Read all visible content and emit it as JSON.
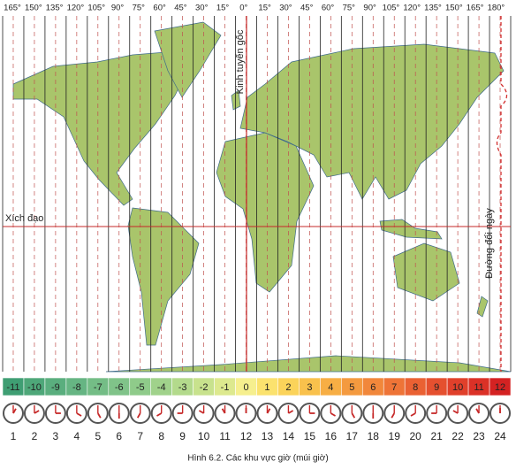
{
  "longitude_labels": [
    "165°",
    "150°",
    "135°",
    "120°",
    "105°",
    "90°",
    "75°",
    "60°",
    "45°",
    "30°",
    "15°",
    "0°",
    "15°",
    "30°",
    "45°",
    "60°",
    "75°",
    "90°",
    "105°",
    "120°",
    "135°",
    "150°",
    "165°",
    "180°"
  ],
  "labels": {
    "prime_meridian": "Kinh tuyến gốc",
    "equator": "Xích đạo",
    "date_line": "Đường đổi ngày"
  },
  "time_zones": [
    {
      "label": "-11",
      "color": "#3f9e73"
    },
    {
      "label": "-10",
      "color": "#4ea779"
    },
    {
      "label": "-9",
      "color": "#5aae7e"
    },
    {
      "label": "-8",
      "color": "#66b583"
    },
    {
      "label": "-7",
      "color": "#74bd86"
    },
    {
      "label": "-6",
      "color": "#80c389"
    },
    {
      "label": "-5",
      "color": "#8fcb8a"
    },
    {
      "label": "-4",
      "color": "#a0d28b"
    },
    {
      "label": "-3",
      "color": "#b3da8c"
    },
    {
      "label": "-2",
      "color": "#c8e28d"
    },
    {
      "label": "-1",
      "color": "#dde98e"
    },
    {
      "label": "0",
      "color": "#f6ef8e"
    },
    {
      "label": "1",
      "color": "#fbe26e"
    },
    {
      "label": "2",
      "color": "#fbd35a"
    },
    {
      "label": "3",
      "color": "#f9c14c"
    },
    {
      "label": "4",
      "color": "#f7ae44"
    },
    {
      "label": "5",
      "color": "#f49a3f"
    },
    {
      "label": "6",
      "color": "#f1873b"
    },
    {
      "label": "7",
      "color": "#ee7437"
    },
    {
      "label": "8",
      "color": "#ea6133"
    },
    {
      "label": "9",
      "color": "#e5502f"
    },
    {
      "label": "10",
      "color": "#e0402b"
    },
    {
      "label": "11",
      "color": "#db3127"
    },
    {
      "label": "12",
      "color": "#d42222"
    }
  ],
  "clock_numbers": [
    1,
    2,
    3,
    4,
    5,
    6,
    7,
    8,
    9,
    10,
    11,
    12,
    13,
    14,
    15,
    16,
    17,
    18,
    19,
    20,
    21,
    22,
    23,
    24
  ],
  "caption": "Hình 6.2. Các khu vực giờ (múi giờ)"
}
